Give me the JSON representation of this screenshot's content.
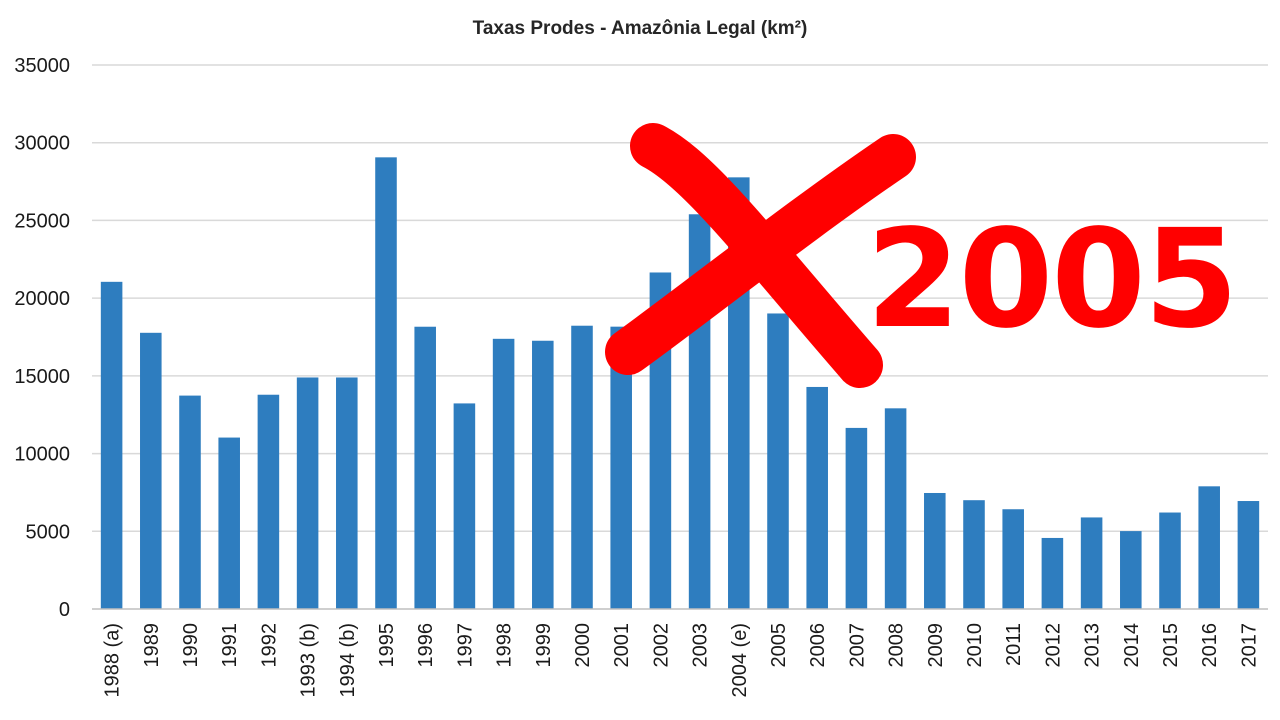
{
  "chart_data": {
    "type": "bar",
    "title": "Taxas Prodes - Amazônia Legal (km²)",
    "xlabel": "",
    "ylabel": "",
    "ylim": [
      0,
      35000
    ],
    "yticks": [
      0,
      5000,
      10000,
      15000,
      20000,
      25000,
      30000,
      35000
    ],
    "grid": true,
    "legend": "none",
    "bar_color": "#2e7dbf",
    "categories": [
      "1988 (a)",
      "1989",
      "1990",
      "1991",
      "1992",
      "1993 (b)",
      "1994 (b)",
      "1995",
      "1996",
      "1997",
      "1998",
      "1999",
      "2000",
      "2001",
      "2002",
      "2003",
      "2004 (e)",
      "2005",
      "2006",
      "2007",
      "2008",
      "2009",
      "2010",
      "2011",
      "2012",
      "2013",
      "2014",
      "2015",
      "2016",
      "2017"
    ],
    "values": [
      21050,
      17770,
      13730,
      11030,
      13786,
      14896,
      14896,
      29059,
      18161,
      13227,
      17383,
      17259,
      18226,
      18165,
      21651,
      25396,
      27772,
      19014,
      14286,
      11651,
      12911,
      7464,
      7000,
      6418,
      4571,
      5891,
      5012,
      6207,
      7893,
      6947
    ]
  },
  "annotation": {
    "text": "2005",
    "color": "#ff0000",
    "mark": "cross-mark-icon"
  }
}
